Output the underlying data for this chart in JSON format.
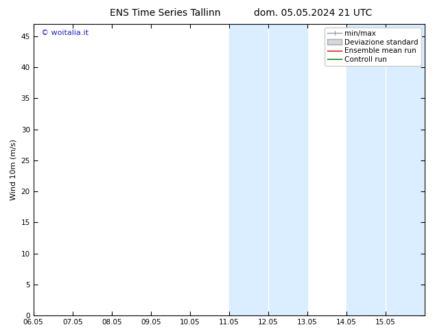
{
  "title_left": "ENS Time Series Tallinn",
  "title_right": "dom. 05.05.2024 21 UTC",
  "ylabel": "Wind 10m (m/s)",
  "watermark": "© woitalia.it",
  "xlim": [
    0,
    10
  ],
  "ylim": [
    0,
    47
  ],
  "yticks": [
    0,
    5,
    10,
    15,
    20,
    25,
    30,
    35,
    40,
    45
  ],
  "xtick_labels": [
    "06.05",
    "07.05",
    "08.05",
    "09.05",
    "10.05",
    "11.05",
    "12.05",
    "13.05",
    "14.05",
    "15.05"
  ],
  "xtick_positions": [
    0,
    1,
    2,
    3,
    4,
    5,
    6,
    7,
    8,
    9
  ],
  "shaded_bands": [
    {
      "xmin": 5.0,
      "xmax": 5.5
    },
    {
      "xmin": 5.5,
      "xmax": 7.0
    },
    {
      "xmin": 8.0,
      "xmax": 8.5
    },
    {
      "xmin": 8.5,
      "xmax": 10.0
    }
  ],
  "shade_color": "#daeeff",
  "background_color": "#ffffff",
  "legend_items": [
    {
      "label": "min/max",
      "color": "#999999",
      "lw": 1.0
    },
    {
      "label": "Deviazione standard",
      "color": "#cccccc",
      "lw": 6
    },
    {
      "label": "Ensemble mean run",
      "color": "#cc0000",
      "lw": 1.0
    },
    {
      "label": "Controll run",
      "color": "#006600",
      "lw": 1.0
    }
  ],
  "title_fontsize": 10,
  "tick_fontsize": 7.5,
  "legend_fontsize": 7.5,
  "ylabel_fontsize": 8,
  "watermark_color": "#2222bb",
  "watermark_fontsize": 8,
  "spine_color": "#000000"
}
